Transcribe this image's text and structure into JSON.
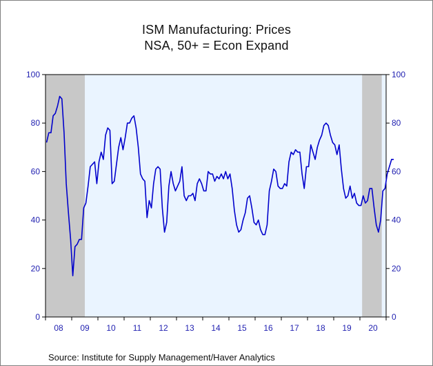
{
  "chart_data": {
    "type": "line",
    "title": "ISM Manufacturing: Prices",
    "subtitle": "NSA, 50+ = Econ Expand",
    "source": "Source:  Institute for Supply Management/Haver Analytics",
    "ylim": [
      0,
      100
    ],
    "yticks": [
      0,
      20,
      40,
      60,
      80,
      100
    ],
    "x_start_year": 2008,
    "x_end_year": 2020,
    "xtick_labels": [
      "08",
      "09",
      "10",
      "11",
      "12",
      "13",
      "14",
      "15",
      "16",
      "17",
      "18",
      "19",
      "20"
    ],
    "recessions": [
      {
        "start": "2008-01",
        "end": "2009-06"
      },
      {
        "start": "2020-02",
        "end": "2020-10"
      }
    ],
    "colors": {
      "line": "#0000cc",
      "plot_bg": "#eaf4ff",
      "recession": "#c8c8c8",
      "axis_text": "#1f1fb0"
    },
    "series": [
      {
        "start": "2008-01",
        "values": [
          72,
          76,
          76,
          83,
          84,
          87,
          91,
          90,
          76,
          55,
          43,
          32,
          17,
          29,
          30,
          32,
          32,
          45,
          47,
          54,
          62,
          63,
          64,
          55,
          64,
          68,
          65,
          75,
          78,
          77,
          55,
          56,
          63,
          70,
          74,
          69,
          74,
          80,
          80,
          82,
          83,
          78,
          70,
          59,
          57,
          56,
          41,
          48,
          45,
          55,
          61,
          62,
          61,
          45,
          35,
          39,
          54,
          60,
          55,
          52,
          54,
          56,
          62,
          50,
          48,
          50,
          50,
          51,
          48,
          55,
          57,
          55,
          52,
          52,
          60,
          59,
          59,
          56,
          58,
          57,
          59,
          57,
          60,
          57,
          59,
          53,
          44,
          38,
          35,
          36,
          40,
          43,
          49,
          50,
          45,
          39,
          38,
          40,
          36,
          34,
          34,
          38,
          52,
          56,
          61,
          60,
          54,
          53,
          53,
          55,
          54,
          64,
          68,
          67,
          69,
          68,
          68,
          59,
          53,
          62,
          62,
          71,
          68,
          65,
          70,
          73,
          75,
          79,
          80,
          79,
          75,
          72,
          71,
          67,
          71,
          61,
          53,
          49,
          50,
          54,
          49,
          51,
          47,
          46,
          46,
          50,
          47,
          48,
          53,
          53,
          45,
          38,
          35,
          40,
          52,
          53,
          59,
          62,
          65,
          65
        ]
      }
    ]
  }
}
